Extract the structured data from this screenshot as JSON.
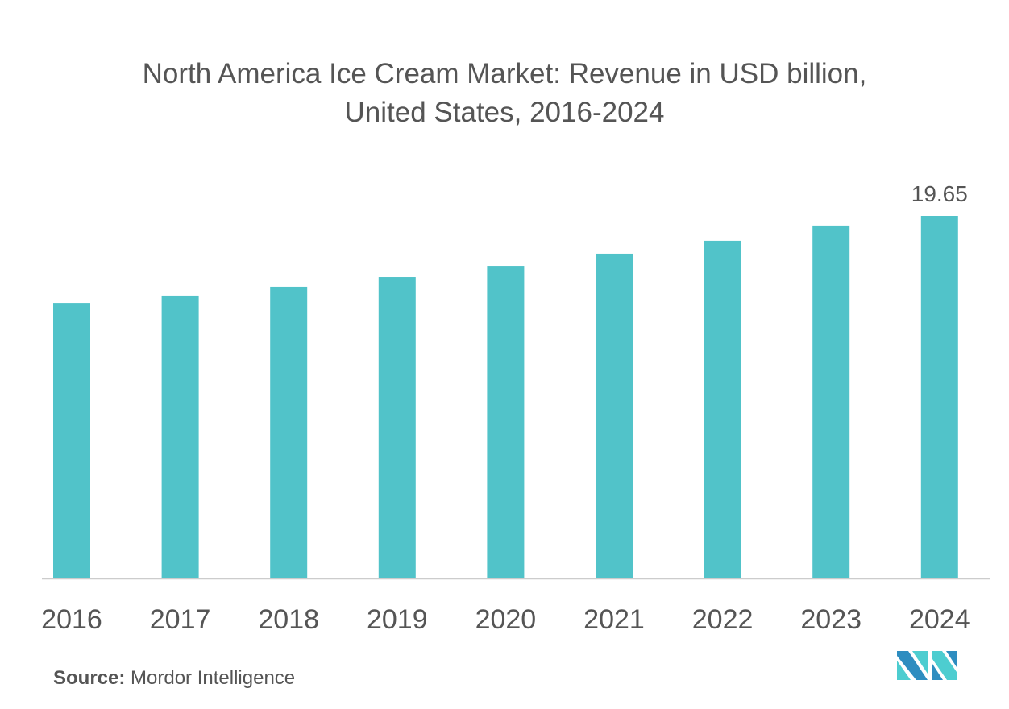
{
  "chart_data": {
    "type": "bar",
    "title": "North America Ice Cream Market: Revenue in USD billion,",
    "subtitle": "United States, 2016-2024",
    "categories": [
      "2016",
      "2017",
      "2018",
      "2019",
      "2020",
      "2021",
      "2022",
      "2023",
      "2024"
    ],
    "values": [
      14.93,
      15.33,
      15.81,
      16.33,
      16.94,
      17.6,
      18.3,
      19.13,
      19.65
    ],
    "data_labels": {
      "2024": "19.65"
    },
    "xlabel": "",
    "ylabel": "",
    "ylim": [
      0,
      19.65
    ],
    "grid": false,
    "bar_color": "#51c3c9",
    "axis_color": "#cccccc"
  },
  "source": {
    "label": "Source:",
    "value": "Mordor Intelligence"
  },
  "logo": {
    "colors": [
      "#2e8dc0",
      "#4dcdd0"
    ]
  }
}
